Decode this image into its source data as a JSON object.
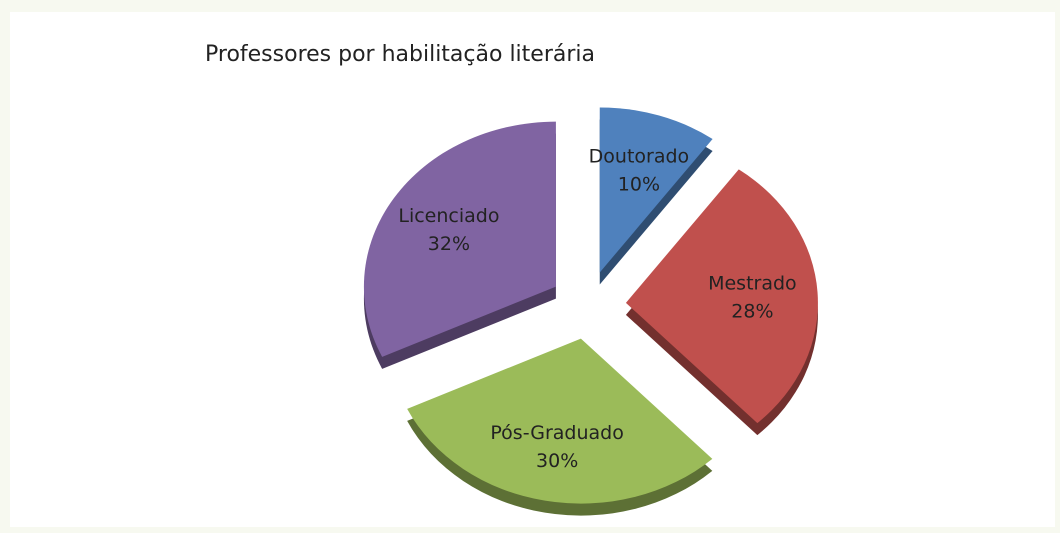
{
  "chart_data": {
    "type": "pie",
    "title": "Professores por habilitação literária",
    "categories": [
      "Doutorado",
      "Mestrado",
      "Pós-Graduado",
      "Licenciado"
    ],
    "values": [
      10,
      28,
      30,
      32
    ],
    "value_labels": [
      "10%",
      "28%",
      "30%",
      "32%"
    ],
    "colors": [
      "#4f81bd",
      "#c0504d",
      "#9bbb59",
      "#8064a2"
    ]
  }
}
